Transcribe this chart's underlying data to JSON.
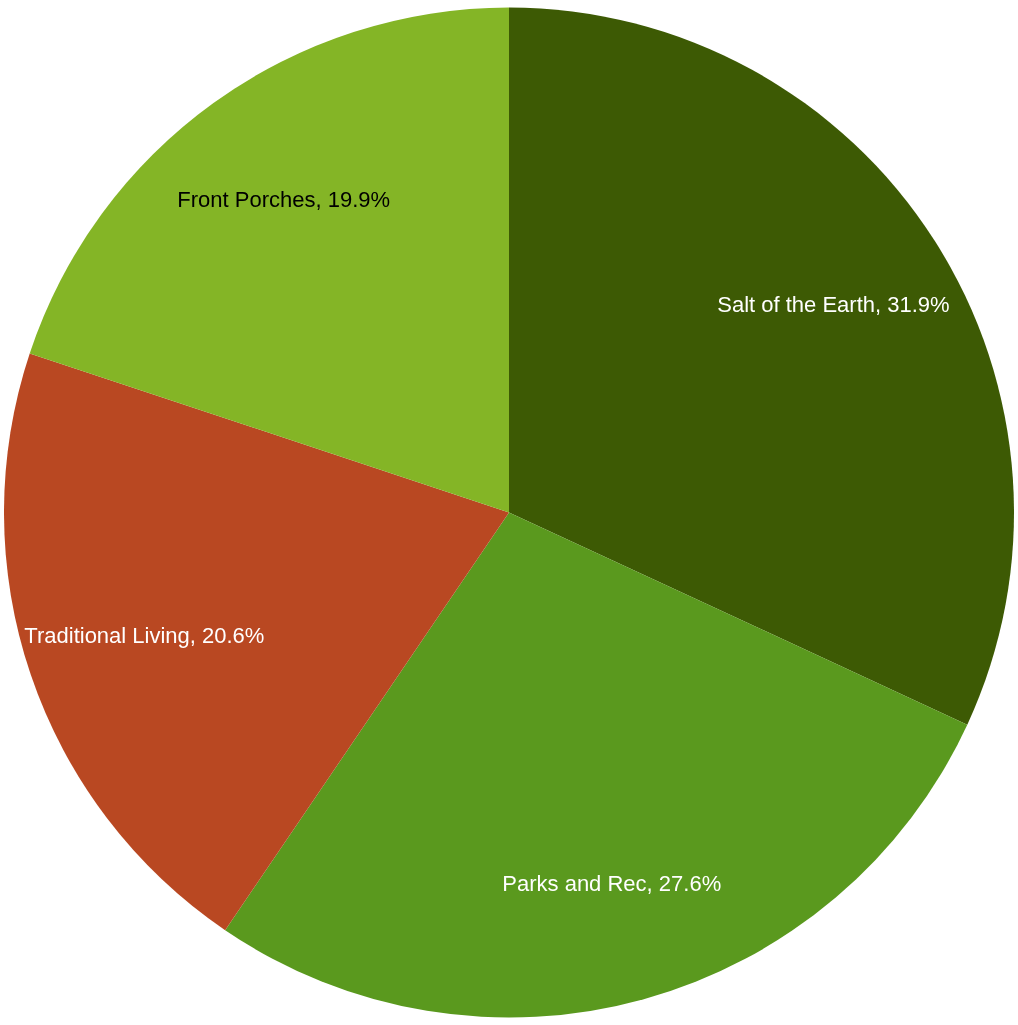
{
  "chart_data": {
    "type": "pie",
    "categories": [
      "Salt of the Earth",
      "Parks and Rec",
      "Traditional Living",
      "Front Porches"
    ],
    "values": [
      31.9,
      27.6,
      20.6,
      19.9
    ],
    "colors": [
      "#3d5a04",
      "#5a991e",
      "#b94822",
      "#84b526"
    ],
    "value_labels": [
      "31.9%",
      "27.6%",
      "20.6%",
      "19.9%"
    ]
  }
}
